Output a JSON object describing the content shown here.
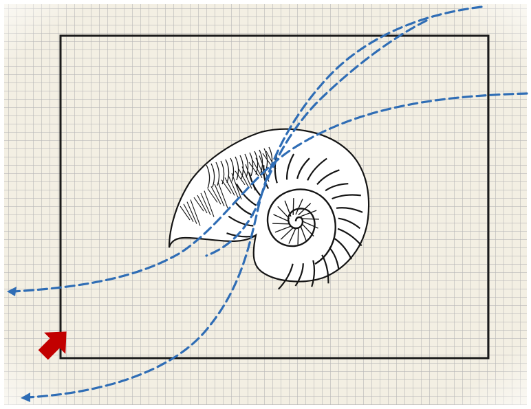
{
  "diagram": {
    "grid_paper": {
      "background_color": "#f3efe3",
      "line_color": "#b7b7b7"
    },
    "frame": {
      "stroke_color": "#1a1a1a"
    },
    "corner_arrow": {
      "icon": "block-arrow-icon",
      "color": "#c20000",
      "direction": "up-right"
    },
    "shell": {
      "icon": "nautilus-shell-icon",
      "ink_color": "#141414",
      "paper_color": "#ffffff"
    },
    "flow_paths": {
      "stroke_color": "#2f6db5",
      "style": "dashed",
      "count": 3
    }
  }
}
